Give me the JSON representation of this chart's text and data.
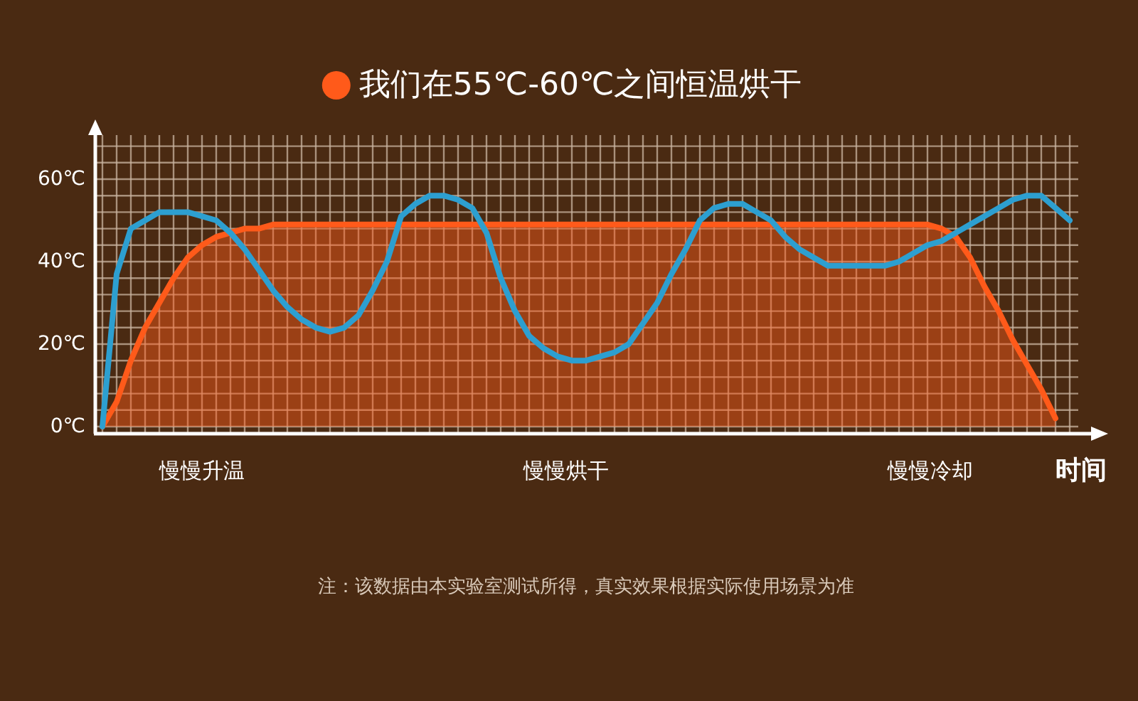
{
  "chart_data": {
    "type": "line",
    "categories": [
      null,
      null,
      null,
      null,
      null,
      null,
      null,
      null,
      null,
      null,
      null,
      null,
      null,
      null,
      null,
      null,
      null,
      null,
      null,
      null,
      null,
      null,
      null,
      null,
      null,
      null,
      null,
      null,
      null,
      null,
      null,
      null,
      null,
      null,
      null,
      null,
      null,
      null,
      null,
      null,
      null,
      null,
      null,
      null,
      null,
      null,
      null,
      null,
      null,
      null,
      null,
      null,
      null,
      null,
      null,
      null,
      null,
      null,
      null,
      null,
      null,
      null,
      null,
      null,
      null,
      null,
      null,
      null,
      null
    ],
    "series": [
      {
        "name": "我们在55℃-60℃之间恒温烘干",
        "type": "area",
        "color": "#ff5a1a",
        "values": [
          0,
          6,
          16,
          24,
          30,
          36,
          41,
          44,
          46,
          47,
          48,
          48,
          49,
          49,
          49,
          49,
          49,
          49,
          49,
          49,
          49,
          49,
          49,
          49,
          49,
          49,
          49,
          49,
          49,
          49,
          49,
          49,
          49,
          49,
          49,
          49,
          49,
          49,
          49,
          49,
          49,
          49,
          49,
          49,
          49,
          49,
          49,
          49,
          49,
          49,
          49,
          49,
          49,
          49,
          49,
          49,
          49,
          49,
          49,
          48,
          46,
          41,
          34,
          28,
          21,
          15,
          9,
          2,
          null
        ]
      },
      {
        "type": "line",
        "color": "#2d9fd0",
        "values": [
          0,
          37,
          48,
          50,
          52,
          52,
          52,
          51,
          50,
          47,
          43,
          38,
          33,
          29,
          26,
          24,
          23,
          24,
          27,
          33,
          40,
          51,
          54,
          56,
          56,
          55,
          53,
          47,
          36,
          28,
          22,
          19,
          17,
          16,
          16,
          17,
          18,
          20,
          25,
          30,
          37,
          43,
          50,
          53,
          54,
          54,
          52,
          50,
          46,
          43,
          41,
          39,
          39,
          39,
          39,
          39,
          40,
          42,
          44,
          45,
          47,
          49,
          51,
          53,
          55,
          56,
          56,
          53,
          50
        ]
      }
    ],
    "xlabel": "时间",
    "ylim": [
      0,
      70
    ],
    "yticks": [
      {
        "value": 0,
        "label": "0℃"
      },
      {
        "value": 20,
        "label": "20℃"
      },
      {
        "value": 40,
        "label": "40℃"
      },
      {
        "value": 60,
        "label": "60℃"
      }
    ],
    "grid": true,
    "legend": "top",
    "annotations": [
      "慢慢升温",
      "慢慢烘干",
      "慢慢冷却",
      "注：该数据由本实验室测试所得，真实效果根据实际使用场景为准"
    ]
  }
}
